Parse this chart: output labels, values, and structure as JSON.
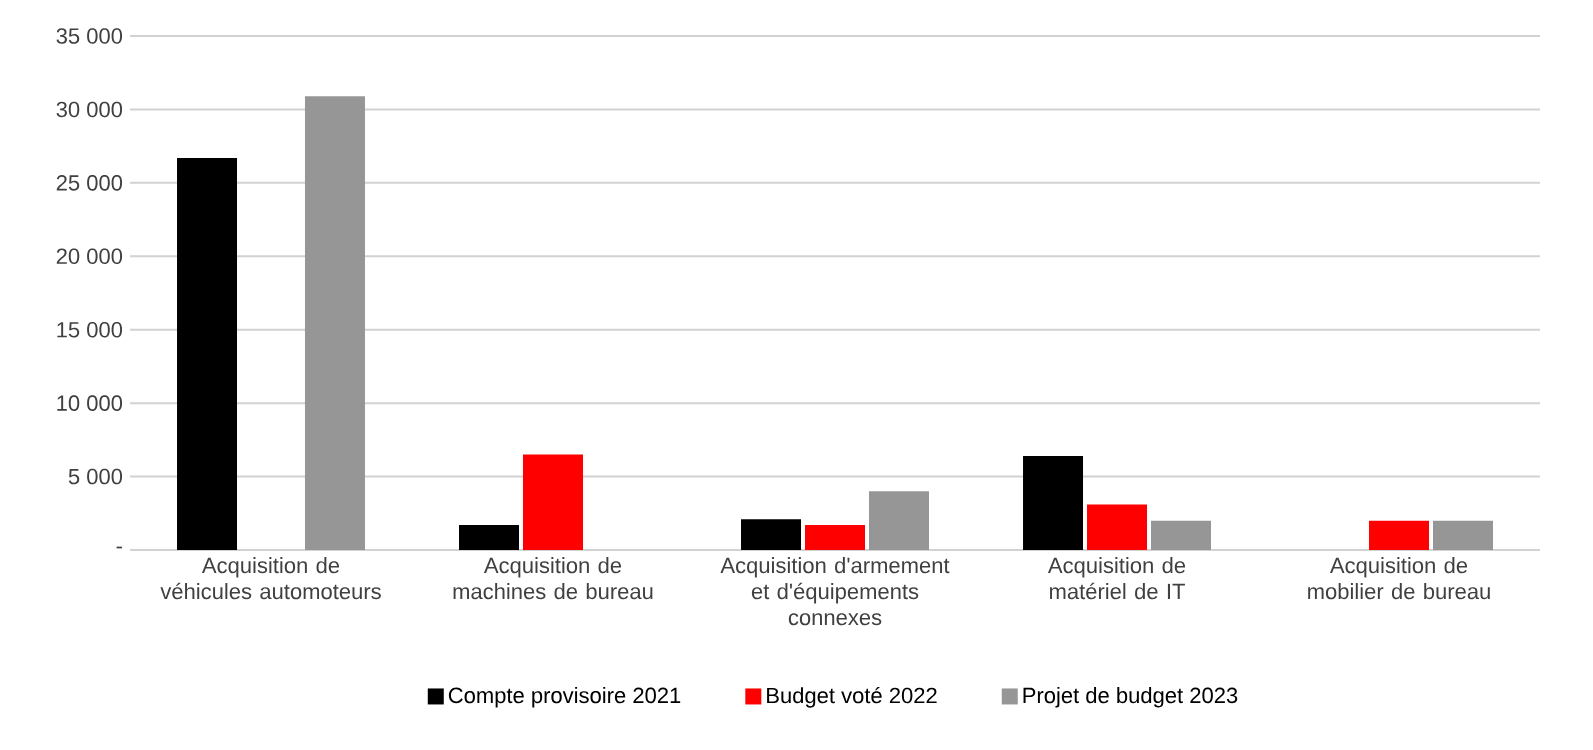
{
  "chart_data": {
    "type": "bar",
    "categories": [
      "Acquisition de véhicules automoteurs",
      "Acquisition de machines de bureau",
      "Acquisition d'armement et d'équipements connexes",
      "Acquisition de matériel de IT",
      "Acquisition de mobilier de bureau"
    ],
    "series": [
      {
        "name": "Compte provisoire 2021",
        "color": "#000000",
        "values": [
          26700,
          1700,
          2100,
          6400,
          0
        ]
      },
      {
        "name": "Budget voté 2022",
        "color": "#ff0000",
        "values": [
          0,
          6500,
          1700,
          3100,
          2000
        ]
      },
      {
        "name": "Projet de budget 2023",
        "color": "#969696",
        "values": [
          30900,
          0,
          4000,
          2000,
          2000
        ]
      }
    ],
    "ylim": [
      0,
      35000
    ],
    "yticks": [
      {
        "value": 0,
        "label": "-"
      },
      {
        "value": 5000,
        "label": "5 000"
      },
      {
        "value": 10000,
        "label": "10 000"
      },
      {
        "value": 15000,
        "label": "15 000"
      },
      {
        "value": 20000,
        "label": "20 000"
      },
      {
        "value": 25000,
        "label": "25 000"
      },
      {
        "value": 30000,
        "label": "30 000"
      },
      {
        "value": 35000,
        "label": "35 000"
      }
    ],
    "grid": "y",
    "legend": "bottom"
  }
}
